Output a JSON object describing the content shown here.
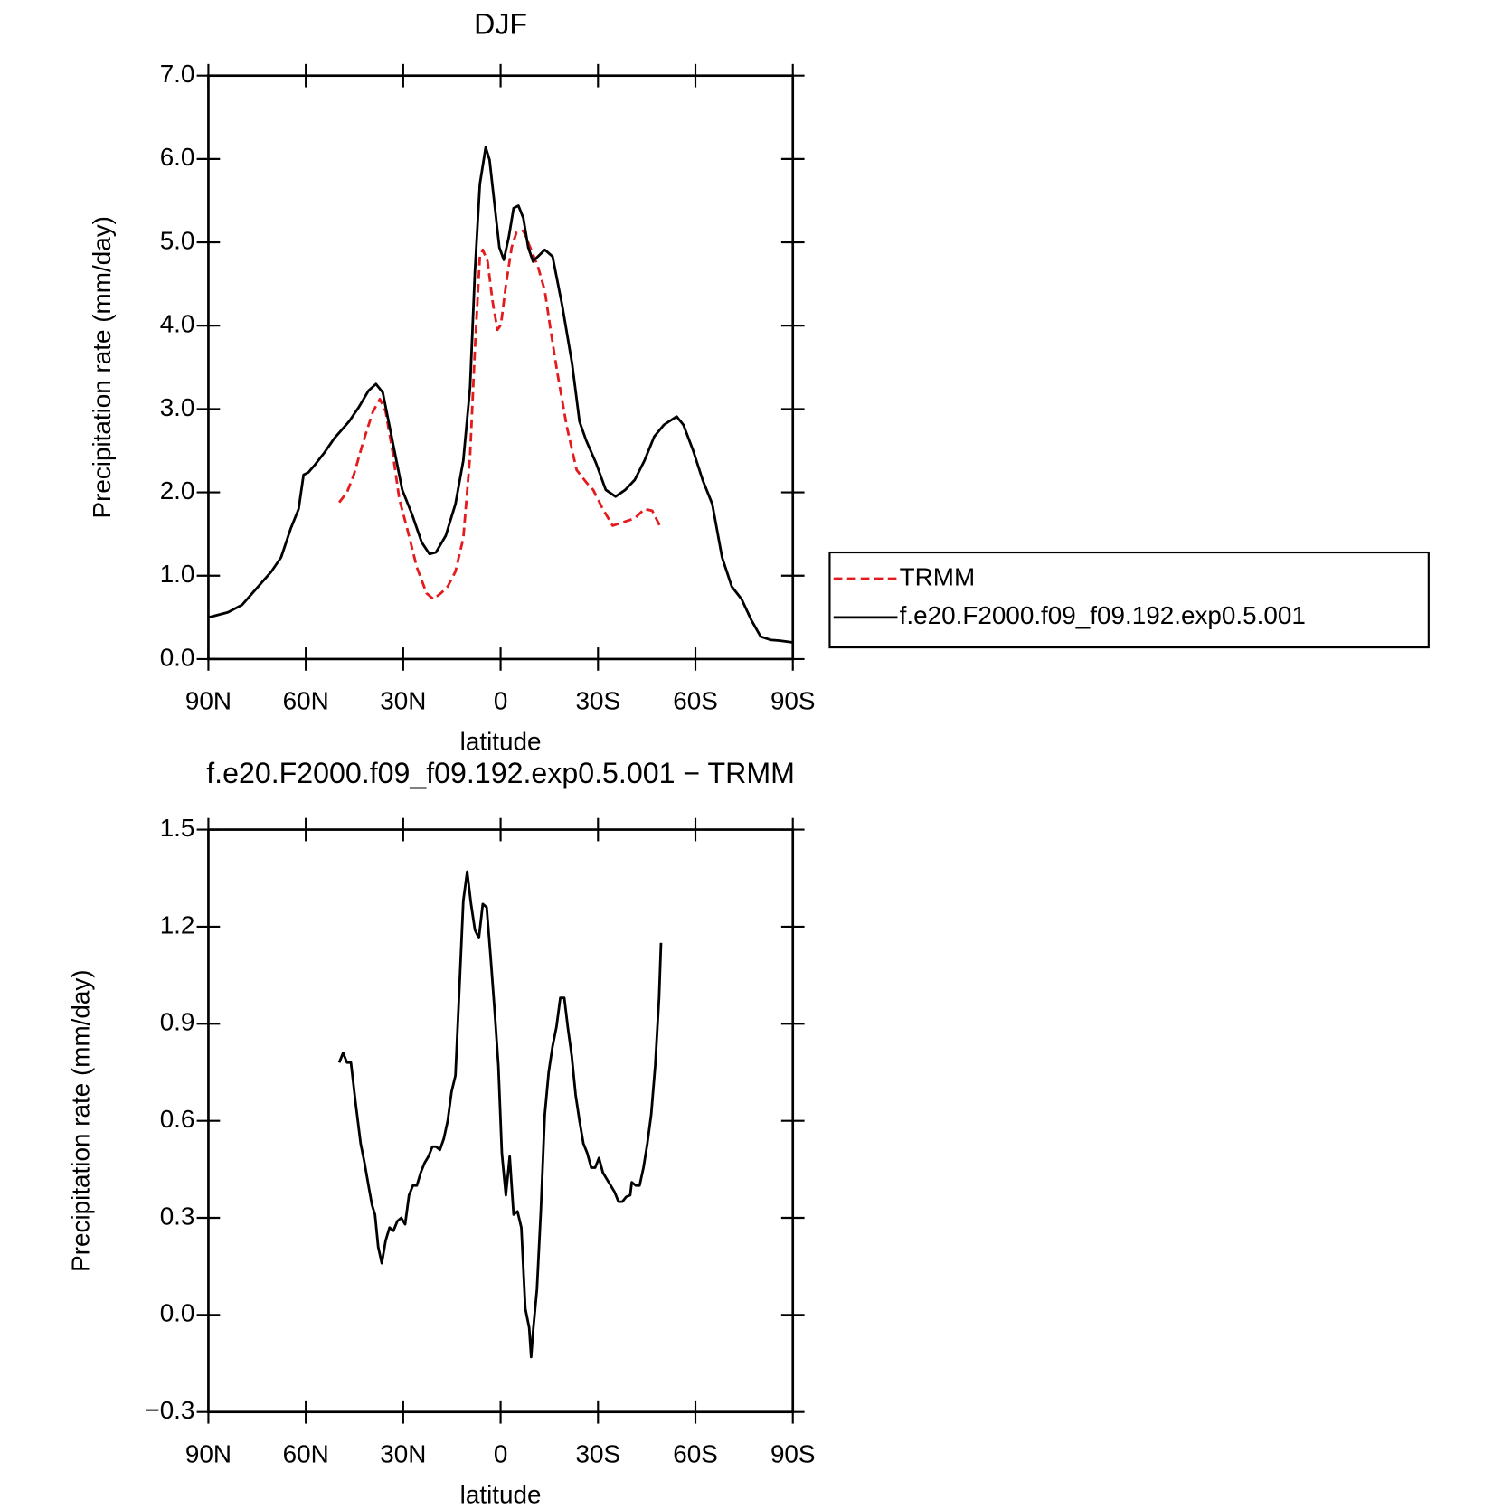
{
  "chart_data": [
    {
      "type": "line",
      "title": "DJF",
      "xlabel": "latitude",
      "ylabel": "Precipitation rate (mm/day)",
      "xlim": [
        90,
        -90
      ],
      "xticks": [
        {
          "value": 90,
          "label": "90N"
        },
        {
          "value": 60,
          "label": "60N"
        },
        {
          "value": 30,
          "label": "30N"
        },
        0,
        {
          "value": -30,
          "label": "30S"
        },
        {
          "value": -60,
          "label": "60S"
        },
        {
          "value": -90,
          "label": "90S"
        }
      ],
      "ylim": [
        0,
        7
      ],
      "yticks": [
        {
          "value": 0,
          "label": "0.0"
        },
        {
          "value": 1,
          "label": "1.0"
        },
        {
          "value": 2,
          "label": "2.0"
        },
        {
          "value": 3,
          "label": "3.0"
        },
        {
          "value": 4,
          "label": "4.0"
        },
        {
          "value": 5,
          "label": "5.0"
        },
        {
          "value": 6,
          "label": "6.0"
        },
        {
          "value": 7,
          "label": "7.0"
        }
      ],
      "legend": "outside right",
      "series": [
        {
          "name": "TRMM",
          "color": "#e41a1c",
          "dash": true,
          "x": [
            49.7,
            47.3,
            45.2,
            42.2,
            39.3,
            37.2,
            35.4,
            33.3,
            31.2,
            28.8,
            25.8,
            22.8,
            20.7,
            18.4,
            16.3,
            13.9,
            11.5,
            9.4,
            7.9,
            6.4,
            5.5,
            4.0,
            2.5,
            1.0,
            -0.1,
            -1.6,
            -3.4,
            -4.9,
            -7.0,
            -9.1,
            -11.5,
            -13.6,
            -15.4,
            -17.5,
            -20.4,
            -23.4,
            -26.4,
            -28.5,
            -31.5,
            -34.5,
            -38.4,
            -41.3,
            -44.3,
            -46.7,
            -49.4
          ],
          "values": [
            1.88,
            2.0,
            2.21,
            2.62,
            2.97,
            3.12,
            2.97,
            2.5,
            1.92,
            1.57,
            1.1,
            0.79,
            0.72,
            0.79,
            0.87,
            1.05,
            1.45,
            2.44,
            3.72,
            4.83,
            4.91,
            4.77,
            4.3,
            3.95,
            4.01,
            4.48,
            4.94,
            5.12,
            5.14,
            4.94,
            4.71,
            4.42,
            3.95,
            3.43,
            2.79,
            2.27,
            2.12,
            2.03,
            1.8,
            1.6,
            1.65,
            1.69,
            1.8,
            1.78,
            1.57
          ]
        },
        {
          "name": "f.e20.F2000.f09_f09.192.exp0.5.001",
          "color": "#000000",
          "dash": false,
          "x": [
            90,
            84.0,
            79.6,
            75.1,
            70.6,
            67.6,
            64.6,
            62.2,
            60.7,
            59.2,
            57.2,
            54.2,
            51.2,
            46.7,
            43.7,
            40.7,
            38.4,
            36.3,
            33.3,
            30.3,
            27.3,
            24.3,
            21.9,
            19.9,
            16.9,
            13.9,
            11.5,
            9.4,
            7.9,
            6.4,
            4.6,
            3.4,
            1.9,
            0.4,
            -1.0,
            -2.5,
            -4.0,
            -5.5,
            -7.0,
            -8.5,
            -10.0,
            -11.5,
            -13.6,
            -16.0,
            -19.0,
            -22.0,
            -24.3,
            -26.4,
            -29.4,
            -32.4,
            -35.4,
            -38.4,
            -41.3,
            -44.3,
            -47.3,
            -50.3,
            -54.2,
            -56.3,
            -59.3,
            -62.2,
            -65.2,
            -68.2,
            -71.2,
            -74.2,
            -77.2,
            -80.1,
            -83.1,
            -86.1,
            -90
          ],
          "values": [
            0.5,
            0.56,
            0.65,
            0.85,
            1.05,
            1.22,
            1.57,
            1.8,
            2.21,
            2.24,
            2.33,
            2.48,
            2.65,
            2.85,
            3.02,
            3.22,
            3.3,
            3.2,
            2.62,
            2.03,
            1.74,
            1.4,
            1.26,
            1.28,
            1.48,
            1.86,
            2.38,
            3.26,
            4.65,
            5.7,
            6.14,
            5.99,
            5.47,
            4.94,
            4.79,
            5.06,
            5.41,
            5.44,
            5.29,
            4.94,
            4.77,
            4.83,
            4.91,
            4.83,
            4.24,
            3.55,
            2.85,
            2.62,
            2.35,
            2.03,
            1.95,
            2.03,
            2.15,
            2.38,
            2.67,
            2.81,
            2.91,
            2.81,
            2.5,
            2.15,
            1.86,
            1.22,
            0.87,
            0.72,
            0.47,
            0.27,
            0.23,
            0.22,
            0.2
          ]
        }
      ]
    },
    {
      "type": "line",
      "title": "f.e20.F2000.f09_f09.192.exp0.5.001 − TRMM",
      "xlabel": "latitude",
      "ylabel": "Precipitation rate (mm/day)",
      "xlim": [
        90,
        -90
      ],
      "xticks": [
        {
          "value": 90,
          "label": "90N"
        },
        {
          "value": 60,
          "label": "60N"
        },
        {
          "value": 30,
          "label": "30N"
        },
        0,
        {
          "value": -30,
          "label": "30S"
        },
        {
          "value": -60,
          "label": "60S"
        },
        {
          "value": -90,
          "label": "90S"
        }
      ],
      "ylim": [
        -0.3,
        1.5
      ],
      "yticks": [
        {
          "value": -0.3,
          "label": "−0.3"
        },
        {
          "value": 0,
          "label": "0.0"
        },
        0.3,
        0.6,
        0.9,
        1.2,
        1.5
      ],
      "series": [
        {
          "color": "#000000",
          "dash": false,
          "x": [
            49.7,
            48.5,
            47.3,
            46.1,
            44.6,
            43.1,
            41.9,
            40.7,
            39.6,
            38.7,
            37.7,
            36.6,
            35.4,
            34.2,
            33.0,
            31.8,
            30.6,
            29.4,
            28.2,
            27.0,
            25.8,
            24.6,
            23.4,
            22.2,
            21.0,
            19.9,
            18.7,
            17.5,
            16.3,
            15.1,
            13.9,
            12.7,
            11.5,
            10.3,
            9.1,
            7.9,
            6.7,
            5.5,
            4.3,
            3.1,
            1.9,
            0.7,
            -0.4,
            -1.6,
            -2.8,
            -4.0,
            -5.2,
            -6.4,
            -7.6,
            -8.8,
            -9.4,
            -10.0,
            -11.2,
            -12.4,
            -13.6,
            -14.8,
            -16.0,
            -17.2,
            -18.4,
            -19.6,
            -20.7,
            -21.9,
            -23.1,
            -24.3,
            -25.5,
            -26.7,
            -27.9,
            -29.1,
            -30.3,
            -31.5,
            -32.7,
            -33.9,
            -35.1,
            -36.3,
            -37.5,
            -38.7,
            -39.9,
            -40.4,
            -41.6,
            -42.8,
            -44.0,
            -45.2,
            -46.4,
            -47.6,
            -48.8,
            -49.4
          ],
          "values": [
            0.78,
            0.81,
            0.78,
            0.78,
            0.65,
            0.53,
            0.47,
            0.4,
            0.34,
            0.31,
            0.21,
            0.16,
            0.23,
            0.27,
            0.26,
            0.29,
            0.3,
            0.28,
            0.37,
            0.4,
            0.4,
            0.44,
            0.47,
            0.49,
            0.52,
            0.52,
            0.51,
            0.545,
            0.6,
            0.69,
            0.74,
            1.01,
            1.28,
            1.37,
            1.27,
            1.19,
            1.165,
            1.27,
            1.26,
            1.11,
            0.95,
            0.77,
            0.5,
            0.37,
            0.49,
            0.31,
            0.32,
            0.27,
            0.02,
            -0.04,
            -0.13,
            -0.05,
            0.08,
            0.32,
            0.62,
            0.75,
            0.83,
            0.89,
            0.98,
            0.98,
            0.89,
            0.8,
            0.68,
            0.6,
            0.53,
            0.5,
            0.455,
            0.455,
            0.485,
            0.44,
            0.42,
            0.4,
            0.38,
            0.35,
            0.35,
            0.365,
            0.37,
            0.41,
            0.4,
            0.4,
            0.455,
            0.53,
            0.62,
            0.77,
            0.98,
            1.15
          ]
        }
      ]
    }
  ]
}
